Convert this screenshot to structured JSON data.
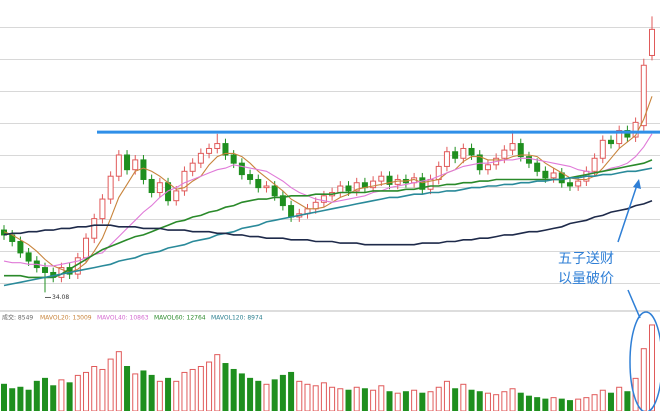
{
  "chart_data": [
    {
      "type": "candlestick",
      "ylim": [
        33,
        52
      ],
      "color_up": "#e05a5a",
      "color_down": "#1f8f1f",
      "open": [
        37.9,
        37.6,
        37.2,
        36.5,
        36.0,
        35.6,
        35.3,
        35.0,
        35.6,
        35.2,
        36.2,
        37.4,
        38.6,
        39.8,
        41.2,
        42.5,
        41.6,
        42.2,
        41.0,
        40.2,
        40.8,
        39.7,
        40.3,
        41.5,
        42.0,
        42.6,
        42.9,
        43.2,
        42.5,
        42.0,
        41.3,
        41.0,
        40.5,
        40.6,
        40.0,
        39.4,
        38.7,
        38.9,
        39.2,
        39.6,
        40.0,
        40.2,
        40.6,
        40.3,
        40.8,
        40.5,
        40.9,
        41.2,
        40.7,
        41.0,
        40.8,
        41.1,
        40.4,
        41.0,
        41.8,
        42.7,
        42.3,
        42.9,
        42.5,
        41.6,
        41.9,
        42.3,
        42.8,
        43.2,
        42.4,
        42.0,
        41.5,
        41.1,
        41.4,
        40.8,
        40.6,
        40.9,
        41.5,
        42.3,
        43.4,
        43.2,
        44.0,
        43.6,
        44.3,
        48.6
      ],
      "high": [
        38.2,
        37.9,
        37.5,
        36.8,
        36.3,
        35.9,
        35.6,
        35.9,
        35.9,
        36.5,
        37.7,
        38.9,
        40.1,
        41.5,
        42.8,
        42.8,
        42.5,
        42.5,
        41.3,
        41.1,
        41.1,
        40.6,
        41.8,
        42.3,
        42.9,
        43.2,
        43.8,
        43.5,
        42.8,
        42.3,
        41.6,
        41.3,
        40.9,
        40.9,
        40.3,
        39.7,
        39.2,
        39.5,
        39.9,
        40.3,
        40.5,
        40.9,
        40.9,
        41.1,
        41.1,
        41.2,
        41.5,
        41.5,
        41.3,
        41.3,
        41.4,
        41.4,
        41.3,
        42.1,
        43.0,
        43.0,
        43.2,
        43.2,
        42.8,
        42.2,
        42.6,
        43.1,
        44.0,
        43.5,
        42.7,
        42.3,
        41.8,
        41.7,
        41.7,
        41.1,
        41.2,
        41.8,
        42.6,
        43.7,
        43.7,
        44.3,
        44.3,
        44.8,
        48.4,
        51.0
      ],
      "low": [
        37.3,
        36.9,
        36.2,
        35.7,
        35.3,
        34.08,
        34.7,
        34.7,
        34.9,
        34.9,
        35.9,
        37.1,
        38.3,
        39.5,
        40.9,
        41.3,
        41.3,
        40.7,
        39.9,
        39.9,
        39.4,
        39.4,
        40.0,
        41.2,
        41.7,
        42.3,
        42.6,
        42.2,
        41.7,
        41.0,
        40.7,
        40.2,
        40.2,
        39.7,
        39.1,
        38.4,
        38.4,
        38.6,
        38.9,
        39.3,
        39.7,
        39.9,
        40.0,
        40.0,
        40.2,
        40.2,
        40.6,
        40.4,
        40.4,
        40.5,
        40.5,
        40.1,
        40.1,
        40.7,
        41.5,
        42.0,
        42.0,
        42.2,
        41.3,
        41.3,
        41.6,
        42.0,
        42.5,
        42.1,
        41.7,
        41.2,
        40.8,
        40.8,
        40.5,
        40.3,
        40.3,
        40.6,
        41.2,
        42.0,
        42.9,
        42.9,
        43.3,
        43.3,
        44.0,
        48.3
      ],
      "close": [
        37.6,
        37.2,
        36.5,
        36.0,
        35.6,
        35.3,
        35.0,
        35.6,
        35.2,
        36.2,
        37.4,
        38.6,
        39.8,
        41.2,
        42.5,
        41.6,
        42.2,
        41.0,
        40.2,
        40.8,
        39.7,
        40.3,
        41.5,
        42.0,
        42.6,
        42.9,
        43.2,
        42.5,
        42.0,
        41.3,
        41.0,
        40.5,
        40.6,
        40.0,
        39.4,
        38.7,
        38.9,
        39.2,
        39.6,
        40.0,
        40.2,
        40.6,
        40.3,
        40.8,
        40.5,
        40.9,
        41.2,
        40.7,
        41.0,
        40.8,
        41.1,
        40.4,
        41.0,
        41.8,
        42.7,
        42.3,
        42.9,
        42.5,
        41.6,
        41.9,
        42.3,
        42.8,
        43.2,
        42.4,
        42.0,
        41.5,
        41.1,
        41.4,
        40.8,
        40.6,
        40.9,
        41.5,
        42.3,
        43.4,
        43.2,
        44.0,
        43.6,
        44.5,
        48.0,
        50.2
      ],
      "lines": [
        {
          "color": "#c8843c",
          "values": [
            37.8,
            37.6,
            37.3,
            37.0,
            36.6,
            36.1,
            35.7,
            35.5,
            35.3,
            35.5,
            35.9,
            36.6,
            37.4,
            38.6,
            39.9,
            40.7,
            41.5,
            41.7,
            41.5,
            41.2,
            40.8,
            40.4,
            40.5,
            40.9,
            41.2,
            41.9,
            42.4,
            42.6,
            42.6,
            42.4,
            42.0,
            41.5,
            41.1,
            40.7,
            40.3,
            39.8,
            39.5,
            39.2,
            39.2,
            39.3,
            39.6,
            39.9,
            40.1,
            40.4,
            40.5,
            40.6,
            40.7,
            40.8,
            40.9,
            40.9,
            41.0,
            40.8,
            40.9,
            41.0,
            41.4,
            41.6,
            42.1,
            42.4,
            42.4,
            42.2,
            42.2,
            42.2,
            42.4,
            42.5,
            42.5,
            42.4,
            42.0,
            41.7,
            41.4,
            41.1,
            41.0,
            41.0,
            41.2,
            41.7,
            42.3,
            42.9,
            43.3,
            43.7,
            44.7,
            46.1
          ]
        },
        {
          "color": "#e07ad8",
          "values": [
            36.0,
            35.9,
            35.9,
            35.8,
            35.8,
            35.7,
            35.7,
            35.8,
            35.9,
            36.0,
            36.2,
            36.4,
            36.5,
            37.0,
            37.5,
            38.0,
            38.5,
            39.0,
            39.4,
            39.9,
            40.3,
            40.5,
            40.8,
            41.0,
            41.2,
            41.4,
            41.6,
            41.7,
            41.9,
            41.8,
            41.7,
            41.6,
            41.5,
            41.2,
            40.9,
            40.5,
            40.2,
            40.0,
            39.8,
            39.7,
            39.6,
            39.7,
            39.8,
            39.9,
            40.0,
            40.2,
            40.3,
            40.5,
            40.6,
            40.7,
            40.8,
            40.9,
            41.0,
            41.2,
            41.4,
            41.6,
            41.8,
            41.9,
            42.0,
            42.0,
            42.1,
            42.2,
            42.2,
            42.3,
            42.3,
            42.2,
            42.1,
            42.0,
            41.9,
            41.8,
            41.6,
            41.5,
            41.4,
            41.5,
            41.7,
            41.8,
            42.0,
            42.4,
            43.0,
            43.8
          ]
        },
        {
          "color": "#2a8a2a",
          "values": [
            35.1,
            35.1,
            35.1,
            35.0,
            35.0,
            35.0,
            35.0,
            35.2,
            35.5,
            35.8,
            36.1,
            36.4,
            36.7,
            36.9,
            37.1,
            37.3,
            37.5,
            37.6,
            37.8,
            38.0,
            38.2,
            38.4,
            38.5,
            38.7,
            38.8,
            39.0,
            39.1,
            39.3,
            39.4,
            39.6,
            39.7,
            39.8,
            39.8,
            39.9,
            39.9,
            40.0,
            40.0,
            40.0,
            40.1,
            40.1,
            40.1,
            40.2,
            40.2,
            40.2,
            40.2,
            40.3,
            40.3,
            40.3,
            40.3,
            40.4,
            40.4,
            40.5,
            40.6,
            40.6,
            40.7,
            40.7,
            40.8,
            40.8,
            40.9,
            40.9,
            41.0,
            41.0,
            41.0,
            41.0,
            41.0,
            41.0,
            41.0,
            41.0,
            41.0,
            41.1,
            41.2,
            41.3,
            41.4,
            41.5,
            41.6,
            41.7,
            41.8,
            41.9,
            42.0,
            42.2
          ]
        },
        {
          "color": "#2a8a9a",
          "values": [
            34.5,
            34.6,
            34.7,
            34.8,
            34.9,
            35.0,
            35.1,
            35.2,
            35.3,
            35.4,
            35.5,
            35.6,
            35.7,
            35.8,
            36.0,
            36.1,
            36.2,
            36.4,
            36.5,
            36.6,
            36.8,
            36.9,
            37.0,
            37.2,
            37.3,
            37.4,
            37.6,
            37.7,
            37.8,
            38.0,
            38.1,
            38.2,
            38.4,
            38.5,
            38.6,
            38.7,
            38.8,
            38.9,
            39.0,
            39.1,
            39.2,
            39.3,
            39.4,
            39.5,
            39.6,
            39.7,
            39.8,
            39.9,
            39.9,
            40.0,
            40.1,
            40.1,
            40.2,
            40.2,
            40.3,
            40.3,
            40.4,
            40.5,
            40.5,
            40.6,
            40.6,
            40.7,
            40.7,
            40.8,
            40.8,
            40.9,
            40.9,
            41.0,
            41.0,
            41.1,
            41.1,
            41.2,
            41.2,
            41.3,
            41.3,
            41.4,
            41.5,
            41.5,
            41.6,
            41.7
          ]
        },
        {
          "color": "#1e2a4a",
          "values": [
            37.6,
            37.7,
            37.7,
            37.8,
            37.8,
            37.9,
            37.9,
            38.0,
            38.0,
            38.1,
            38.1,
            38.2,
            38.2,
            38.2,
            38.1,
            38.1,
            38.1,
            38.0,
            38.0,
            38.0,
            37.9,
            37.9,
            37.9,
            37.8,
            37.8,
            37.8,
            37.7,
            37.7,
            37.6,
            37.6,
            37.5,
            37.5,
            37.4,
            37.4,
            37.4,
            37.3,
            37.3,
            37.3,
            37.2,
            37.2,
            37.2,
            37.1,
            37.1,
            37.1,
            37.0,
            37.0,
            37.0,
            37.0,
            37.0,
            37.0,
            37.0,
            37.1,
            37.1,
            37.1,
            37.2,
            37.2,
            37.3,
            37.3,
            37.4,
            37.4,
            37.5,
            37.6,
            37.6,
            37.7,
            37.8,
            37.8,
            37.9,
            38.0,
            38.1,
            38.3,
            38.4,
            38.5,
            38.7,
            38.8,
            39.0,
            39.1,
            39.2,
            39.4,
            39.5,
            39.7
          ]
        }
      ],
      "hline": {
        "value": 43.9,
        "color": "#2f8fe8"
      },
      "annotation": [
        "五子送财",
        "以量破价"
      ]
    },
    {
      "type": "bar",
      "ylim": [
        0,
        60000
      ],
      "values": [
        18000,
        15000,
        16000,
        14000,
        20000,
        22000,
        17000,
        21000,
        19000,
        24000,
        26000,
        30000,
        28000,
        35000,
        40000,
        30000,
        25000,
        27000,
        24000,
        20000,
        22000,
        20000,
        26000,
        28000,
        30000,
        33000,
        38000,
        32000,
        28000,
        25000,
        22000,
        20000,
        18000,
        21000,
        24000,
        26000,
        20000,
        18000,
        17000,
        19000,
        16000,
        15000,
        14000,
        16000,
        15000,
        14000,
        17000,
        13000,
        12000,
        13000,
        14000,
        12000,
        13000,
        16000,
        20000,
        15000,
        18000,
        14000,
        13000,
        12000,
        11000,
        13000,
        15000,
        12000,
        10000,
        9000,
        8000,
        9000,
        8000,
        7000,
        8000,
        9000,
        11000,
        14000,
        12000,
        16000,
        13000,
        22000,
        42000,
        58000
      ],
      "legend": [
        "成交: 8549",
        "MAVOL20: 13009",
        "MAVOL40: 10863",
        "MAVOL60: 12764",
        "MAVOL120: 8974"
      ]
    }
  ]
}
